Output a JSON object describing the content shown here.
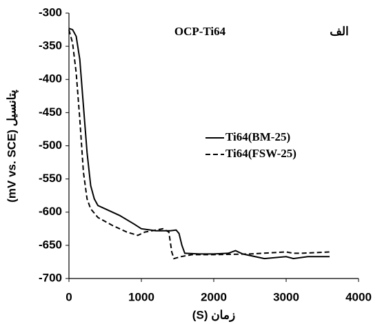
{
  "chart_data": {
    "type": "line",
    "title": "OCP-Ti64",
    "annotation": "الف",
    "x_label": "زمان (S)",
    "y_label": "پتانسیل (mV vs. SCE)",
    "xlim": [
      0,
      4000
    ],
    "xticks": [
      0,
      1000,
      2000,
      3000,
      4000
    ],
    "ylim": [
      -700,
      -300
    ],
    "yticks": [
      -700,
      -650,
      -600,
      -550,
      -500,
      -450,
      -400,
      -350,
      -300
    ],
    "grid": false,
    "legend": "center-right",
    "series": [
      {
        "name": "Ti64(BM-25)",
        "color": "#000000",
        "dash": "solid",
        "x": [
          0,
          50,
          100,
          150,
          200,
          250,
          300,
          350,
          400,
          500,
          700,
          900,
          1000,
          1200,
          1400,
          1480,
          1520,
          1560,
          1600,
          1800,
          2000,
          2200,
          2300,
          2400,
          2700,
          3000,
          3100,
          3300,
          3600
        ],
        "values": [
          -323,
          -325,
          -335,
          -370,
          -440,
          -510,
          -560,
          -580,
          -590,
          -595,
          -605,
          -618,
          -625,
          -628,
          -628,
          -627,
          -632,
          -650,
          -662,
          -663,
          -663,
          -662,
          -658,
          -663,
          -670,
          -667,
          -670,
          -667,
          -667
        ]
      },
      {
        "name": "Ti64(FSW-25)",
        "color": "#000000",
        "dash": "dashed",
        "x": [
          0,
          50,
          100,
          150,
          200,
          250,
          300,
          400,
          600,
          800,
          950,
          1050,
          1300,
          1380,
          1420,
          1450,
          1550,
          1700,
          2000,
          2500,
          3000,
          3100,
          3200,
          3600
        ],
        "values": [
          -325,
          -345,
          -390,
          -460,
          -540,
          -580,
          -595,
          -608,
          -620,
          -630,
          -635,
          -630,
          -625,
          -630,
          -660,
          -670,
          -667,
          -664,
          -664,
          -663,
          -660,
          -662,
          -662,
          -660
        ]
      }
    ]
  }
}
